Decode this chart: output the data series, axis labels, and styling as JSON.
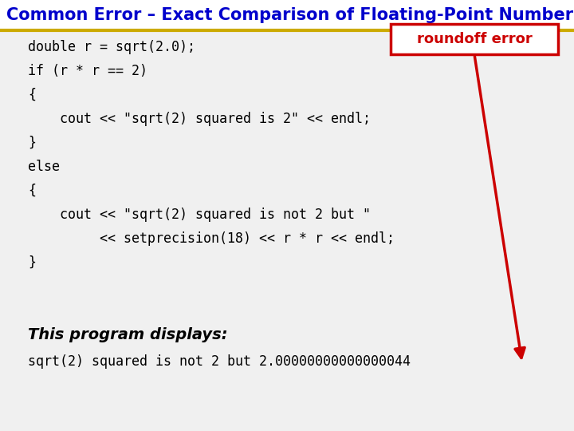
{
  "title": "Common Error – Exact Comparison of Floating-Point Numbers",
  "title_color": "#0000CC",
  "title_bg_color": "#FFFFFF",
  "title_fontsize": 15,
  "body_bg_color": "#F0F0F0",
  "header_bg_color": "#FFFFFF",
  "separator_color": "#CCAA00",
  "code_lines": [
    "double r = sqrt(2.0);",
    "if (r * r == 2)",
    "{",
    "    cout << \"sqrt(2) squared is 2\" << endl;",
    "}",
    "else",
    "{",
    "    cout << \"sqrt(2) squared is not 2 but \"",
    "         << setprecision(18) << r * r << endl;",
    "}"
  ],
  "label_text": "roundoff error",
  "label_color": "#CC0000",
  "label_bg": "#FFFFFF",
  "label_border": "#CC0000",
  "program_displays_label": "This program displays:",
  "program_output": "sqrt(2) squared is not 2 but 2.00000000000000044",
  "code_fontsize": 12,
  "output_fontsize": 12
}
